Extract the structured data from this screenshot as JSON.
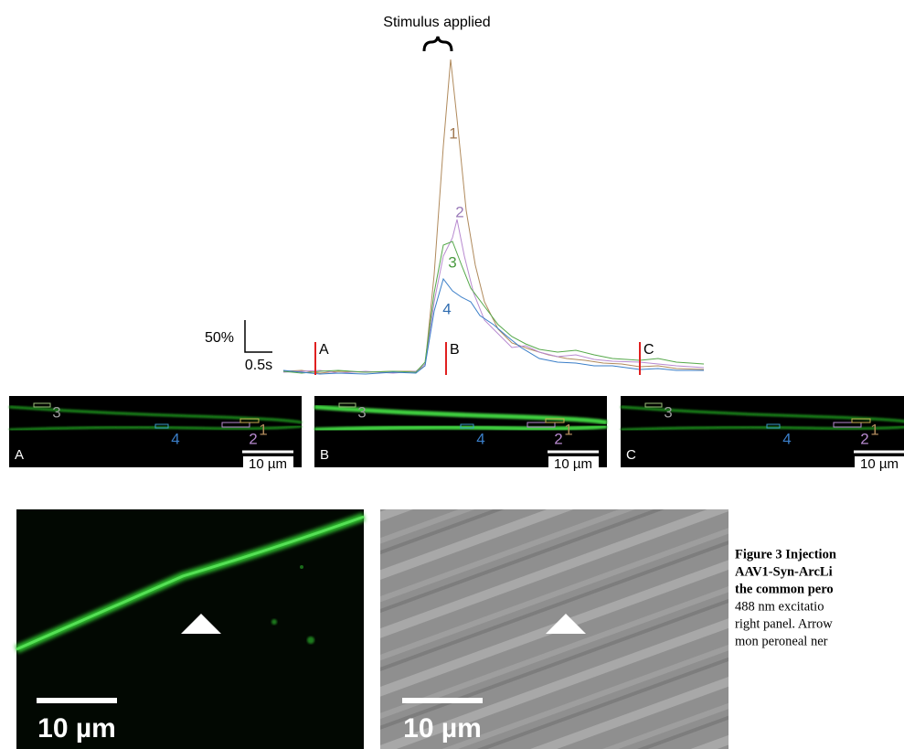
{
  "figure": {
    "stimulus_label": "Stimulus applied",
    "trace_labels": [
      "1",
      "2",
      "3",
      "4"
    ],
    "scale_bar": {
      "amplitude": "50%",
      "time": "0.5s"
    },
    "time_markers": [
      "A",
      "B",
      "C"
    ],
    "panels": [
      {
        "label": "A",
        "rois": [
          "3",
          "4",
          "2",
          "1"
        ],
        "scale": "10 µm"
      },
      {
        "label": "B",
        "rois": [
          "3",
          "4",
          "2",
          "1"
        ],
        "scale": "10 µm"
      },
      {
        "label": "C",
        "rois": [
          "3",
          "4",
          "2",
          "1"
        ],
        "scale": "10 µm"
      }
    ],
    "bottom_panels": [
      {
        "scale": "10 µm"
      },
      {
        "scale": "10 µm"
      }
    ],
    "caption": {
      "bold_lines": [
        "Figure 3 Injection",
        "AAV1-Syn-ArcLi",
        "the common pero"
      ],
      "lines": [
        "488 nm excitatio",
        "right panel. Arrow",
        "mon peroneal ner"
      ]
    }
  }
}
